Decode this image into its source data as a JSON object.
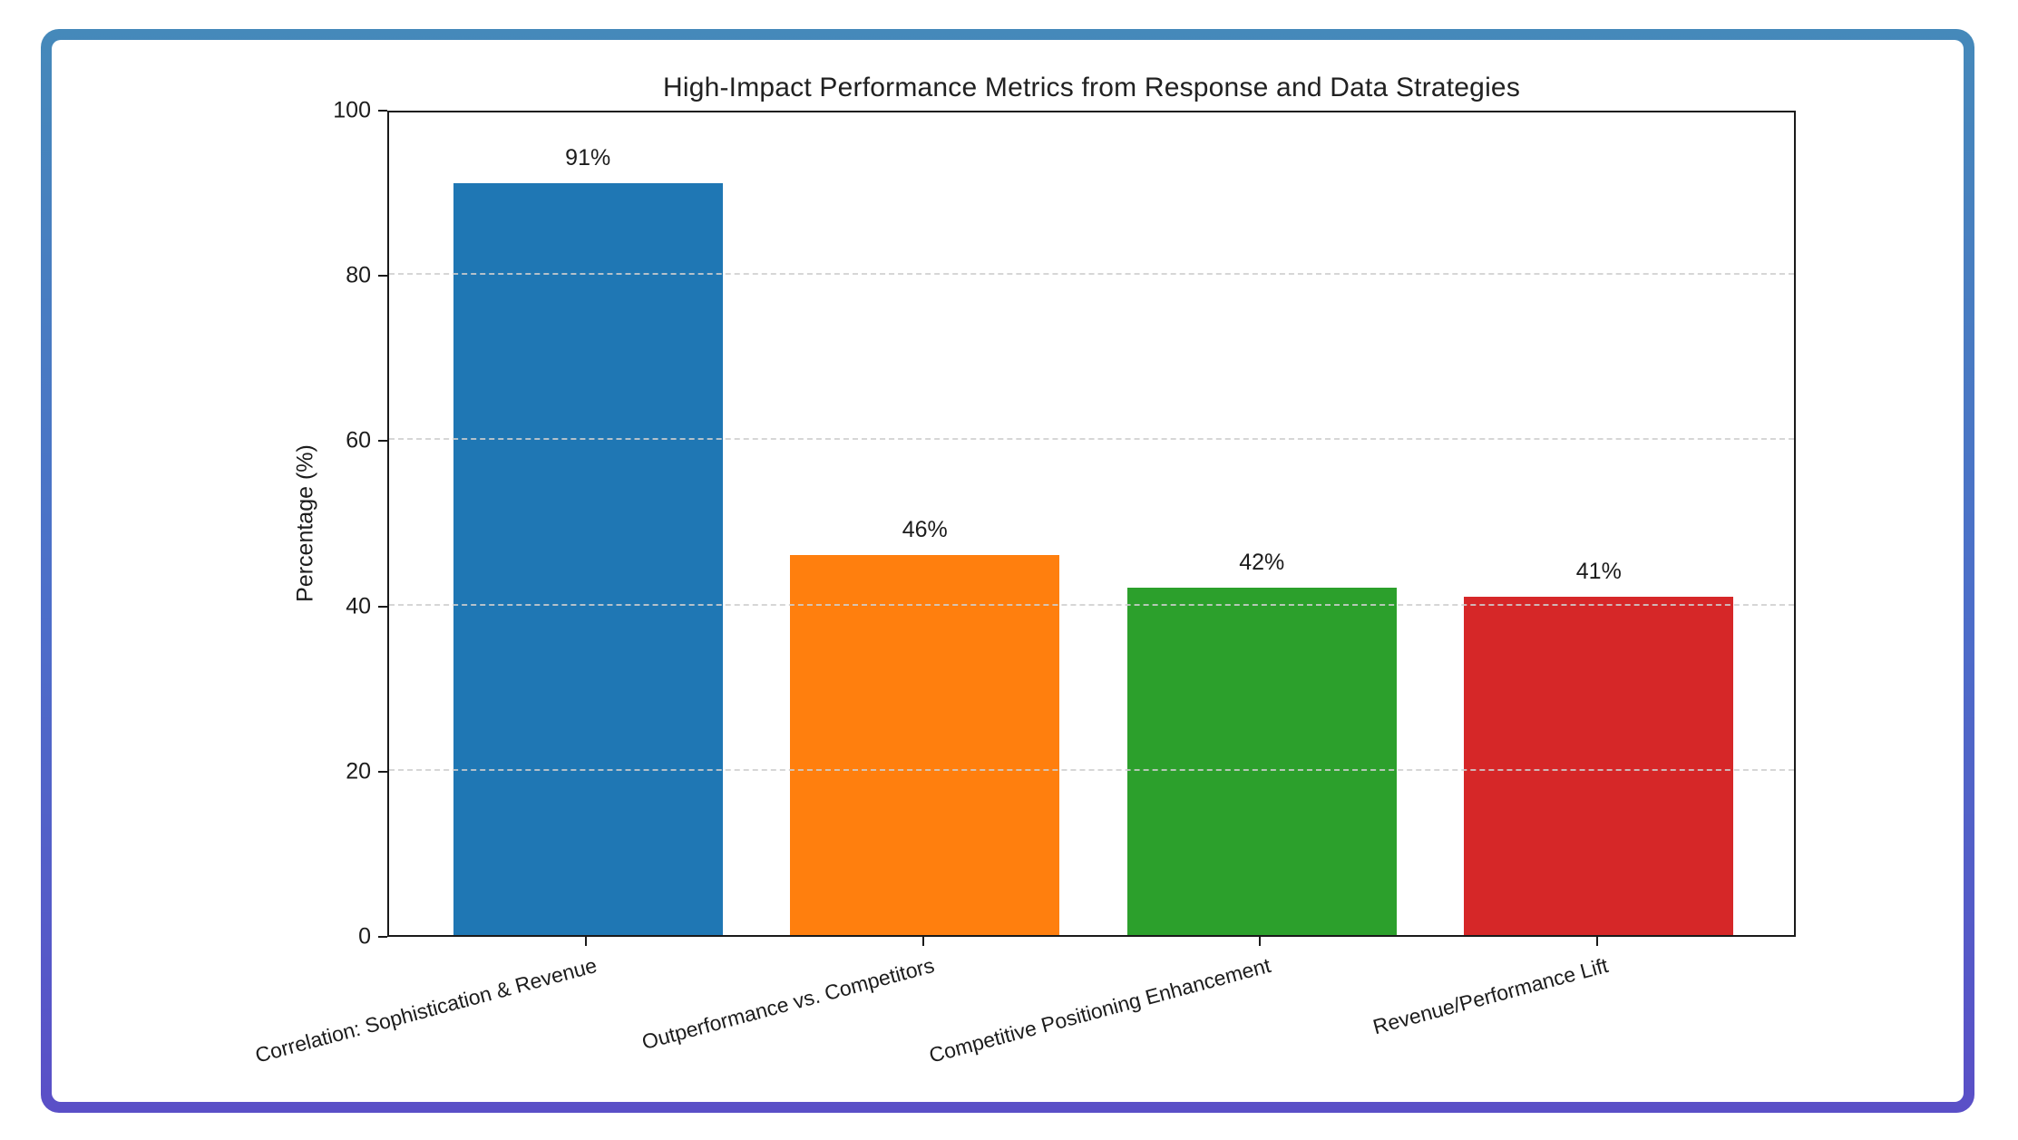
{
  "frame": {
    "border_gradient_top": "#4589BA",
    "border_gradient_middle": "#4C6FC9",
    "border_gradient_bottom": "#5A4FC7",
    "card_background": "#FFFFFF"
  },
  "chart_data": {
    "type": "bar",
    "title": "High-Impact Performance Metrics from Response and Data Strategies",
    "xlabel": "",
    "ylabel": "Percentage (%)",
    "categories": [
      "Correlation: Sophistication & Revenue",
      "Outperformance vs. Competitors",
      "Competitive Positioning Enhancement",
      "Revenue/Performance Lift"
    ],
    "values": [
      91,
      46,
      42,
      41
    ],
    "value_labels": [
      "91%",
      "46%",
      "42%",
      "41%"
    ],
    "bar_colors": [
      "#1f77b4",
      "#ff7f0e",
      "#2ca02c",
      "#d62728"
    ],
    "ylim": [
      0,
      100
    ],
    "yticks": [
      0,
      20,
      40,
      60,
      80,
      100
    ],
    "ytick_labels": [
      "0",
      "20",
      "40",
      "60",
      "80",
      "100"
    ],
    "grid": "horizontal dashed gridlines at 20, 40, 60, 80",
    "legend": "none",
    "x_tick_rotation_deg": 15,
    "plot_frame": "full black box frame"
  }
}
